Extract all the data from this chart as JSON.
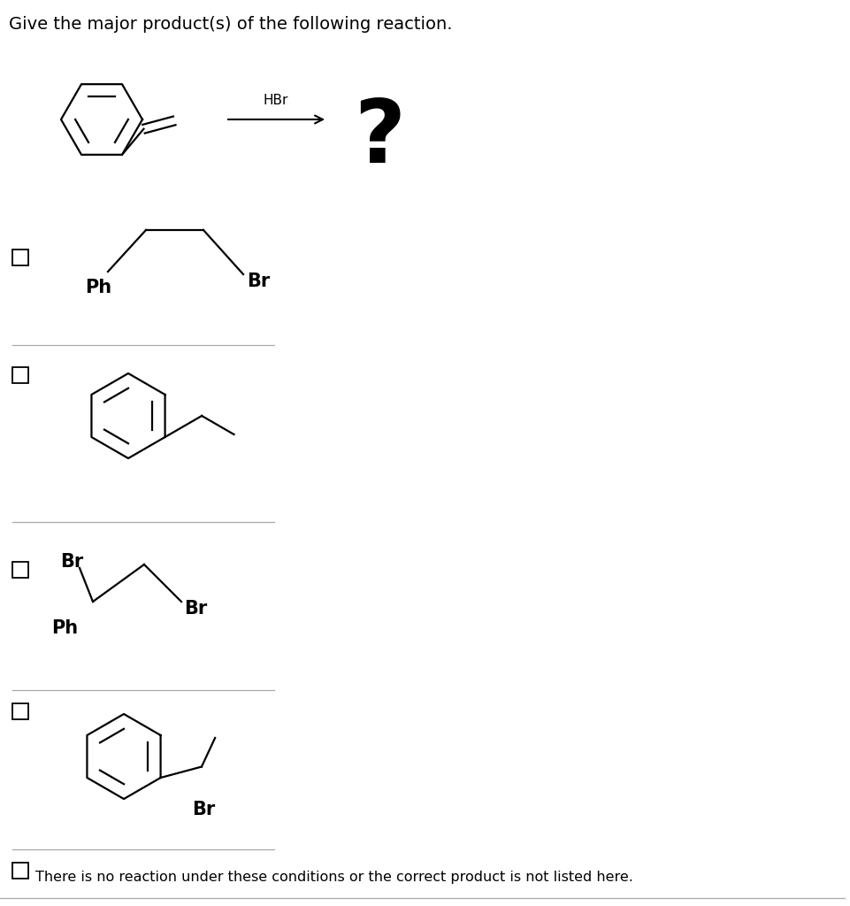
{
  "title": "Give the major product(s) of the following reaction.",
  "reagent": "HBr",
  "bg": "#ffffff",
  "fg": "#000000",
  "title_fs": 14,
  "label_fs": 15,
  "last_text": "There is no reaction under these conditions or the correct product is not listed here.",
  "last_color": "#000000"
}
